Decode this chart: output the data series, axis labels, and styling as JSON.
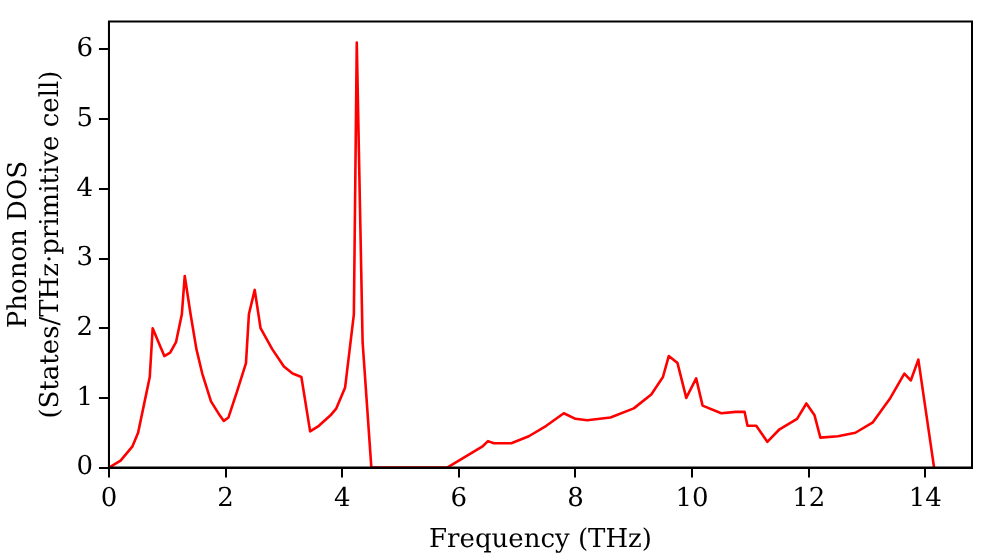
{
  "chart_data": {
    "type": "line",
    "xlabel": "Frequency (THz)",
    "ylabel": "Phonon DOS\n(States/THz·primitive cell)",
    "xlim": [
      0,
      14.8
    ],
    "ylim": [
      0,
      6.4
    ],
    "xticks": [
      0,
      2,
      4,
      6,
      8,
      10,
      12,
      14
    ],
    "yticks": [
      0,
      1,
      2,
      3,
      4,
      5,
      6
    ],
    "grid": false,
    "legend": false,
    "marker": "none",
    "line_style": "solid",
    "series": [
      {
        "color": "#ff0000",
        "x": [
          0,
          0.2,
          0.4,
          0.5,
          0.6,
          0.7,
          0.75,
          0.85,
          0.95,
          1.05,
          1.15,
          1.25,
          1.3,
          1.4,
          1.5,
          1.6,
          1.75,
          1.9,
          1.97,
          2.05,
          2.2,
          2.35,
          2.4,
          2.5,
          2.6,
          2.8,
          3.0,
          3.15,
          3.3,
          3.45,
          3.6,
          3.8,
          3.9,
          4.05,
          4.2,
          4.25,
          4.35,
          4.5,
          5.8,
          6.0,
          6.2,
          6.4,
          6.5,
          6.6,
          6.9,
          7.2,
          7.5,
          7.8,
          8.0,
          8.2,
          8.6,
          9.0,
          9.3,
          9.5,
          9.6,
          9.75,
          9.9,
          10.07,
          10.18,
          10.5,
          10.75,
          10.9,
          10.95,
          11.1,
          11.29,
          11.5,
          11.8,
          11.96,
          12.1,
          12.2,
          12.5,
          12.8,
          13.1,
          13.4,
          13.64,
          13.75,
          13.88,
          14.15
        ],
        "values": [
          0,
          0.1,
          0.3,
          0.5,
          0.9,
          1.3,
          2.0,
          1.8,
          1.6,
          1.65,
          1.8,
          2.2,
          2.75,
          2.2,
          1.7,
          1.35,
          0.95,
          0.75,
          0.67,
          0.72,
          1.1,
          1.5,
          2.2,
          2.55,
          2.0,
          1.7,
          1.45,
          1.35,
          1.3,
          0.52,
          0.6,
          0.75,
          0.85,
          1.15,
          2.2,
          6.1,
          1.8,
          0,
          0,
          0.1,
          0.2,
          0.3,
          0.38,
          0.35,
          0.35,
          0.45,
          0.6,
          0.78,
          0.7,
          0.68,
          0.72,
          0.85,
          1.05,
          1.3,
          1.6,
          1.5,
          1.0,
          1.28,
          0.89,
          0.78,
          0.8,
          0.8,
          0.6,
          0.6,
          0.37,
          0.55,
          0.7,
          0.92,
          0.75,
          0.43,
          0.45,
          0.5,
          0.65,
          1.0,
          1.35,
          1.25,
          1.55,
          0
        ]
      }
    ]
  }
}
